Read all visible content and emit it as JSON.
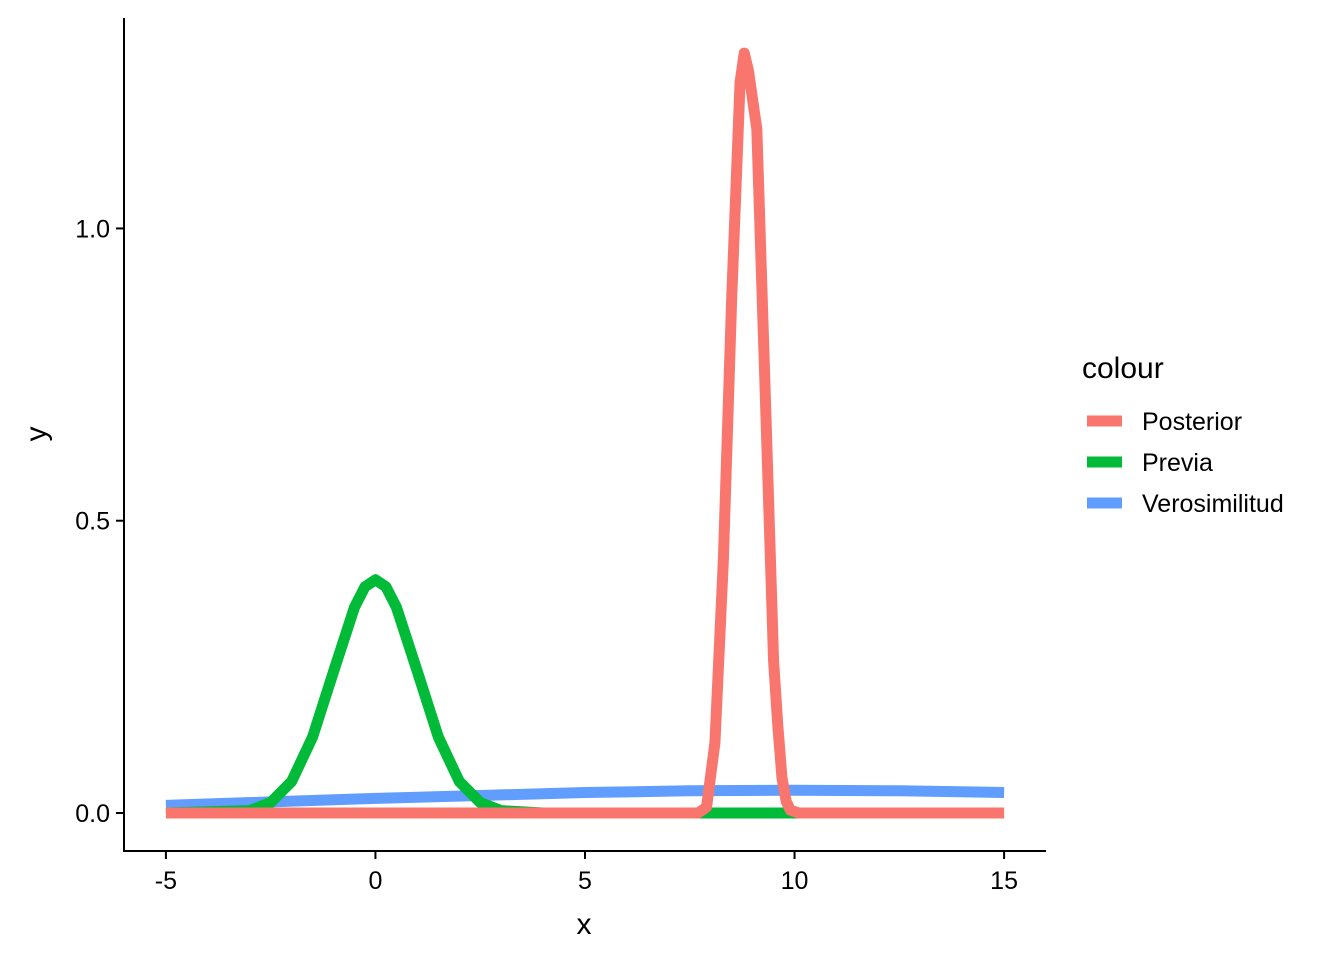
{
  "chart_data": {
    "type": "line",
    "xlabel": "x",
    "ylabel": "y",
    "xlim": [
      -6,
      16
    ],
    "ylim": [
      -0.065,
      1.36
    ],
    "x_ticks": [
      -5,
      0,
      5,
      10,
      15
    ],
    "x_tick_labels": [
      "-5",
      "0",
      "5",
      "10",
      "15"
    ],
    "y_ticks": [
      0.0,
      0.5,
      1.0
    ],
    "y_tick_labels": [
      "0.0",
      "0.5",
      "1.0"
    ],
    "grid": false,
    "legend": {
      "title": "colour",
      "placement": "right",
      "entries": [
        "Posterior",
        "Previa",
        "Verosimilitud"
      ]
    },
    "series": [
      {
        "name": "Posterior",
        "color": "#F8766D",
        "x": [
          -5,
          7.7,
          7.9,
          8.1,
          8.3,
          8.5,
          8.7,
          8.8,
          8.9,
          9.1,
          9.3,
          9.5,
          9.6,
          9.7,
          9.8,
          9.9,
          10.1,
          15
        ],
        "y": [
          0,
          0,
          0.01,
          0.12,
          0.43,
          0.88,
          1.25,
          1.3,
          1.27,
          1.17,
          0.72,
          0.26,
          0.15,
          0.06,
          0.02,
          0.005,
          0,
          0
        ]
      },
      {
        "name": "Previa",
        "color": "#00BA38",
        "x": [
          -5,
          -3,
          -2.5,
          -2,
          -1.5,
          -1,
          -0.5,
          -0.25,
          0,
          0.25,
          0.5,
          1,
          1.5,
          2,
          2.5,
          3,
          4,
          5,
          15
        ],
        "y": [
          0,
          0.004,
          0.018,
          0.054,
          0.13,
          0.242,
          0.352,
          0.387,
          0.399,
          0.387,
          0.352,
          0.242,
          0.13,
          0.054,
          0.018,
          0.004,
          0,
          0,
          0
        ]
      },
      {
        "name": "Verosimilitud",
        "color": "#619CFF",
        "x": [
          -5,
          -2.5,
          0,
          2.5,
          5,
          7.5,
          10,
          12.5,
          15
        ],
        "y": [
          0.013,
          0.019,
          0.025,
          0.03,
          0.035,
          0.038,
          0.039,
          0.038,
          0.035
        ]
      }
    ]
  }
}
